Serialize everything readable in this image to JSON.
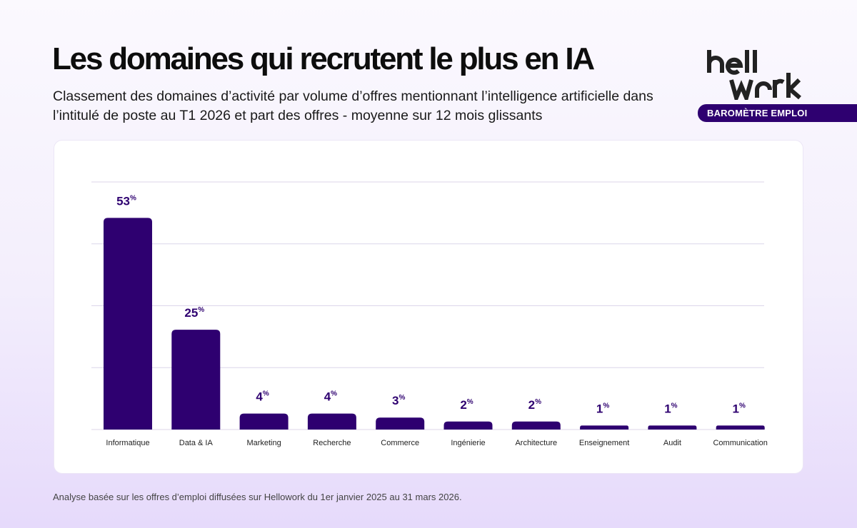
{
  "header": {
    "title": "Les domaines qui recrutent le plus en IA",
    "subtitle": "Classement des domaines d’activité par volume d’offres mentionnant l’intelligence artificielle dans l’intitulé de poste au T1 2026 et part des offres - moyenne sur 12 mois glissants"
  },
  "brand": {
    "logo_text": "hellowork",
    "badge": "BAROMÈTRE EMPLOI"
  },
  "footer": "Analyse basée sur les offres d’emploi diffusées sur Hellowork du 1er janvier 2025 au 31 mars 2026.",
  "colors": {
    "bar": "#2e0070",
    "label": "#2e0070",
    "grid": "#dcd6ea"
  },
  "chart_data": {
    "type": "bar",
    "title": "",
    "xlabel": "",
    "ylabel": "",
    "unit": "%",
    "categories": [
      "Informatique",
      "Data & IA",
      "Marketing",
      "Recherche",
      "Commerce",
      "Ingénierie",
      "Architecture",
      "Enseignement",
      "Audit",
      "Communication"
    ],
    "values": [
      53,
      25,
      4,
      4,
      3,
      2,
      2,
      1,
      1,
      1
    ],
    "ylim": [
      0,
      62
    ],
    "grid": true,
    "legend": "none"
  }
}
